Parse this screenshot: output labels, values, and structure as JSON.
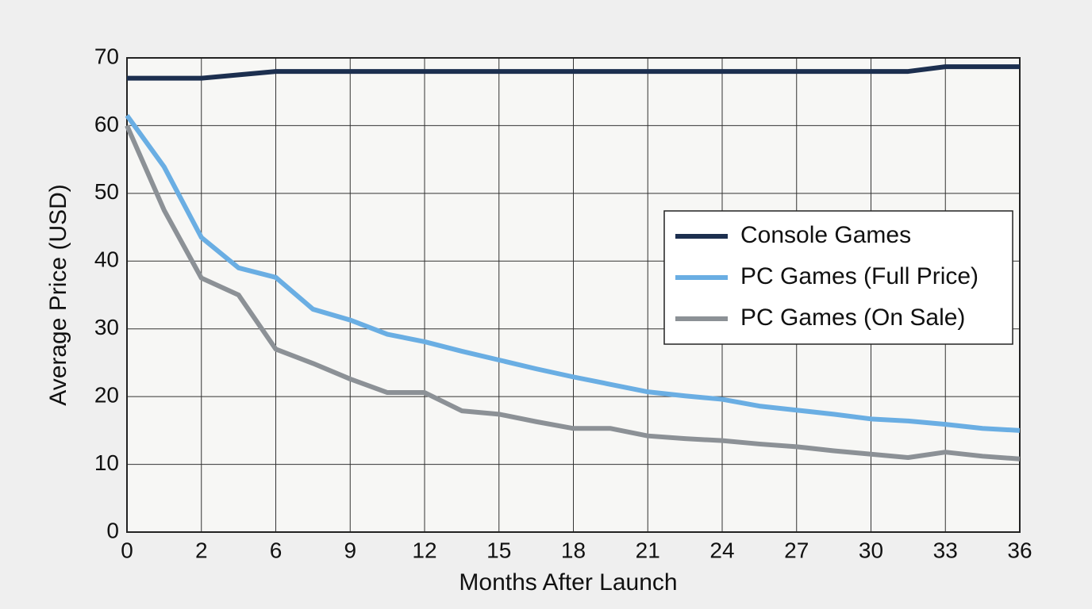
{
  "chart_data": {
    "type": "line",
    "x_label": "Months After Launch",
    "y_label": "Average Price (USD)",
    "categories": [
      "0",
      null,
      "2",
      null,
      "6",
      null,
      "9",
      null,
      "12",
      null,
      "15",
      null,
      "18",
      null,
      "21",
      null,
      "24",
      null,
      "27",
      null,
      "30",
      null,
      "33",
      null,
      "36"
    ],
    "series": [
      {
        "name": "Console Games",
        "color": "#1c2f4f",
        "values": [
          67,
          67,
          67,
          67.5,
          68,
          68,
          68,
          68,
          68,
          68,
          68,
          68,
          68,
          68,
          68,
          68,
          68,
          68,
          68,
          68,
          68,
          68,
          68.7,
          68.7,
          68.7
        ]
      },
      {
        "name": "PC Games (Full Price)",
        "color": "#6aaee3",
        "values": [
          61.5,
          53.9,
          43.5,
          39,
          37.6,
          32.9,
          31.3,
          29.2,
          28.1,
          26.7,
          25.4,
          24.1,
          22.9,
          21.8,
          20.7,
          20.1,
          19.6,
          18.6,
          18,
          17.4,
          16.7,
          16.4,
          15.9,
          15.3,
          15
        ]
      },
      {
        "name": "PC Games (On Sale)",
        "color": "#8c9196",
        "values": [
          60,
          47.5,
          37.5,
          35,
          27,
          24.9,
          22.6,
          20.6,
          20.6,
          17.9,
          17.4,
          16.3,
          15.3,
          15.3,
          14.2,
          13.8,
          13.5,
          13,
          12.6,
          12,
          11.5,
          11,
          11.8,
          11.2,
          10.8
        ]
      }
    ],
    "ylim": [
      0,
      70
    ],
    "yticks": [
      0,
      10,
      20,
      30,
      40,
      50,
      60,
      70
    ],
    "grid": true,
    "legend": "right"
  }
}
